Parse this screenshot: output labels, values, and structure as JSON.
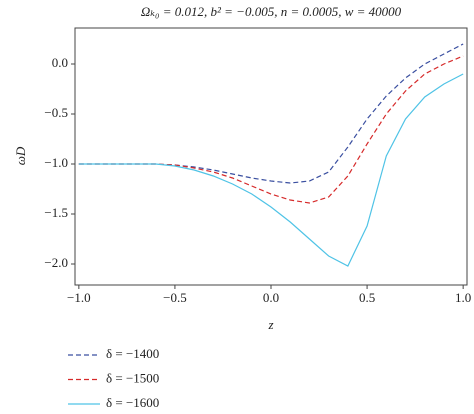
{
  "chart_data": {
    "type": "line",
    "title": "Ωₖ₀ = 0.012, b² = −0.005, n = 0.0005, w = 40000",
    "x_label": "z",
    "y_label": "ωD",
    "x": [
      -1.0,
      -0.9,
      -0.8,
      -0.7,
      -0.6,
      -0.5,
      -0.4,
      -0.3,
      -0.2,
      -0.1,
      0.0,
      0.1,
      0.2,
      0.3,
      0.4,
      0.5,
      0.6,
      0.7,
      0.8,
      0.9,
      1.0
    ],
    "series": [
      {
        "name": "δ = −1400",
        "color": "#3a4fa0",
        "dash": true,
        "values": [
          -1.0,
          -1.0,
          -1.0,
          -1.0,
          -1.0,
          -1.01,
          -1.03,
          -1.06,
          -1.1,
          -1.14,
          -1.17,
          -1.19,
          -1.17,
          -1.08,
          -0.83,
          -0.55,
          -0.32,
          -0.14,
          0.0,
          0.1,
          0.2
        ]
      },
      {
        "name": "δ = −1500",
        "color": "#d62a2a",
        "dash": true,
        "values": [
          -1.0,
          -1.0,
          -1.0,
          -1.0,
          -1.0,
          -1.01,
          -1.04,
          -1.08,
          -1.14,
          -1.22,
          -1.3,
          -1.36,
          -1.39,
          -1.33,
          -1.12,
          -0.8,
          -0.5,
          -0.27,
          -0.1,
          0.0,
          0.08
        ]
      },
      {
        "name": "δ = −1600",
        "color": "#4fc3e6",
        "dash": false,
        "values": [
          -1.0,
          -1.0,
          -1.0,
          -1.0,
          -1.0,
          -1.02,
          -1.06,
          -1.12,
          -1.2,
          -1.3,
          -1.43,
          -1.58,
          -1.75,
          -1.92,
          -2.02,
          -1.62,
          -0.92,
          -0.55,
          -0.33,
          -0.2,
          -0.1
        ]
      }
    ],
    "xlim": [
      -1.02,
      1.02
    ],
    "ylim": [
      -2.21,
      0.36
    ],
    "xticks": [
      {
        "value": -1,
        "label": "−1.0"
      },
      {
        "value": -0.5,
        "label": "−0.5"
      },
      {
        "value": 0,
        "label": "0.0"
      },
      0.5,
      {
        "value": 1,
        "label": "1.0"
      }
    ],
    "yticks": [
      {
        "value": 0,
        "label": "0.0"
      },
      {
        "value": -0.5,
        "label": "−0.5"
      },
      {
        "value": -1,
        "label": "−1.0"
      },
      {
        "value": -1.5,
        "label": "−1.5"
      },
      {
        "value": -2,
        "label": "−2.0"
      }
    ]
  }
}
